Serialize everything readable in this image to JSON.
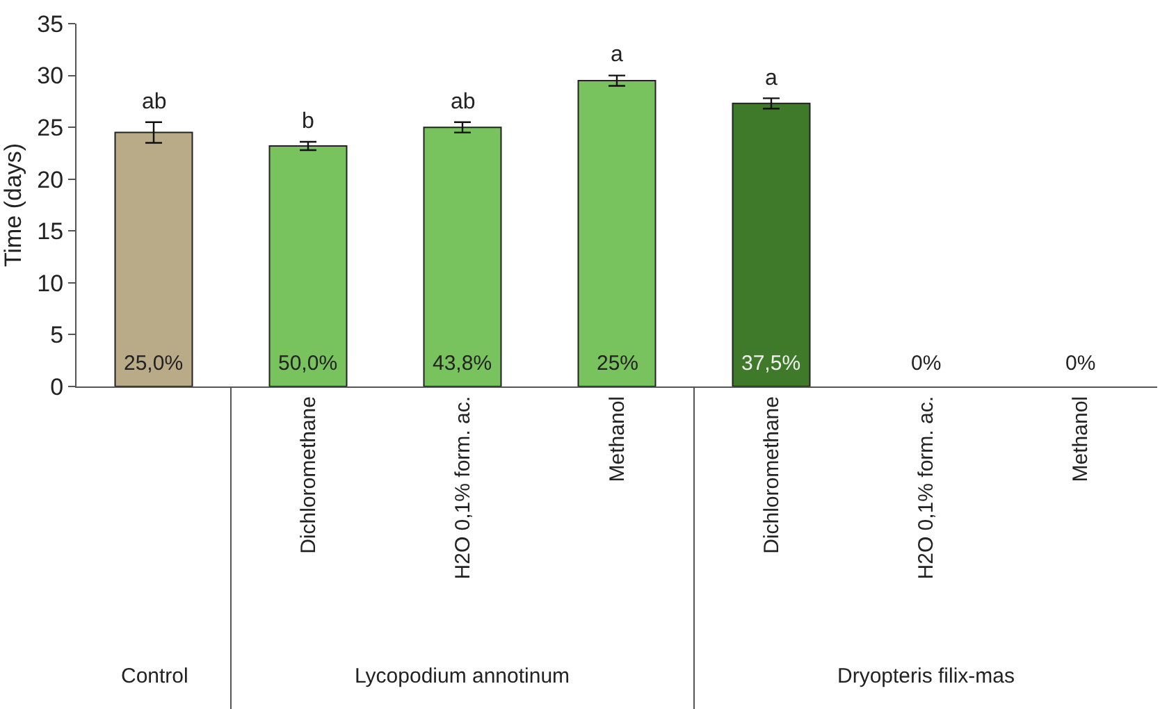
{
  "chart_data": {
    "type": "bar",
    "ylabel": "Time (days)",
    "categories": [
      null,
      "Dichloromethane",
      "H2O 0,1% form. ac.",
      "Methanol",
      "Dichloromethane",
      "H2O 0,1% form. ac.",
      "Methanol"
    ],
    "values": [
      24.5,
      23.2,
      25.0,
      29.5,
      27.3,
      null,
      null
    ],
    "errors": [
      1.0,
      0.4,
      0.5,
      0.5,
      0.5,
      null,
      null
    ],
    "colors": [
      "#b9aa88",
      "#78c35e",
      "#78c35e",
      "#78c35e",
      "#3f7a2a",
      "#78c35e",
      "#78c35e"
    ],
    "ylim": [
      0,
      35
    ],
    "yticks": [
      0,
      5,
      10,
      15,
      20,
      25,
      30,
      35
    ],
    "annotations": [
      "ab",
      "b",
      "ab",
      "a",
      "a",
      "25,0%",
      "50,0%",
      "43,8%",
      "25%",
      "37,5%",
      "0%",
      "0%",
      "Control",
      "Lycopodium annotinum",
      "Dryopteris filix-mas"
    ]
  }
}
